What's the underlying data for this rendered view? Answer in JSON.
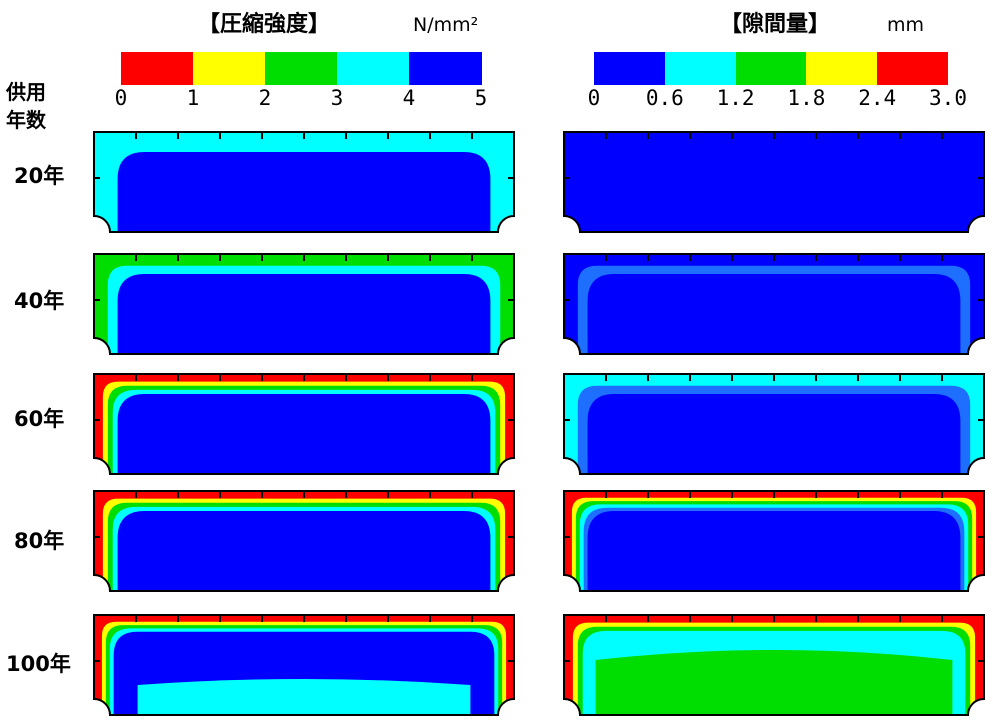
{
  "strength": {
    "title": "【圧縮強度】",
    "unit": "N/mm²",
    "ticks": [
      "0",
      "1",
      "2",
      "3",
      "4",
      "5"
    ],
    "colors": [
      "#ff0000",
      "#ffff00",
      "#00dd00",
      "#00ffff",
      "#0000ff"
    ]
  },
  "gap": {
    "title": "【隙間量】",
    "unit": "mm",
    "ticks": [
      "0",
      "0.6",
      "1.2",
      "1.8",
      "2.4",
      "3.0"
    ],
    "colors": [
      "#0000ff",
      "#00ffff",
      "#00dd00",
      "#ffff00",
      "#ff0000"
    ]
  },
  "axis_label_line1": "供用",
  "axis_label_line2": "年数",
  "years": [
    "20年",
    "40年",
    "60年",
    "80年",
    "100年"
  ],
  "palette": {
    "red": "#ff0000",
    "yellow": "#ffff00",
    "green": "#00dd00",
    "cyan": "#00ffff",
    "blue": "#0000ff",
    "mid_blue": "#1e6fff"
  },
  "panels": {
    "strength": [
      {
        "year": "20年",
        "layers": [
          "cyan",
          "blue"
        ]
      },
      {
        "year": "40年",
        "layers": [
          "green",
          "cyan",
          "blue"
        ]
      },
      {
        "year": "60年",
        "layers": [
          "red",
          "yellow",
          "green",
          "cyan",
          "blue"
        ]
      },
      {
        "year": "80年",
        "layers": [
          "red",
          "yellow",
          "green",
          "cyan",
          "blue"
        ]
      },
      {
        "year": "100年",
        "layers": [
          "red",
          "yellow",
          "green",
          "cyan",
          "blue",
          "cyan"
        ]
      }
    ],
    "gap": [
      {
        "year": "20年",
        "layers": [
          "blue"
        ]
      },
      {
        "year": "40年",
        "layers": [
          "blue",
          "mid_blue",
          "blue"
        ]
      },
      {
        "year": "60年",
        "layers": [
          "cyan",
          "mid_blue",
          "blue"
        ]
      },
      {
        "year": "80年",
        "layers": [
          "red",
          "yellow",
          "green",
          "cyan",
          "mid_blue",
          "blue"
        ]
      },
      {
        "year": "100年",
        "layers": [
          "red",
          "yellow",
          "green",
          "cyan",
          "green"
        ]
      }
    ]
  }
}
